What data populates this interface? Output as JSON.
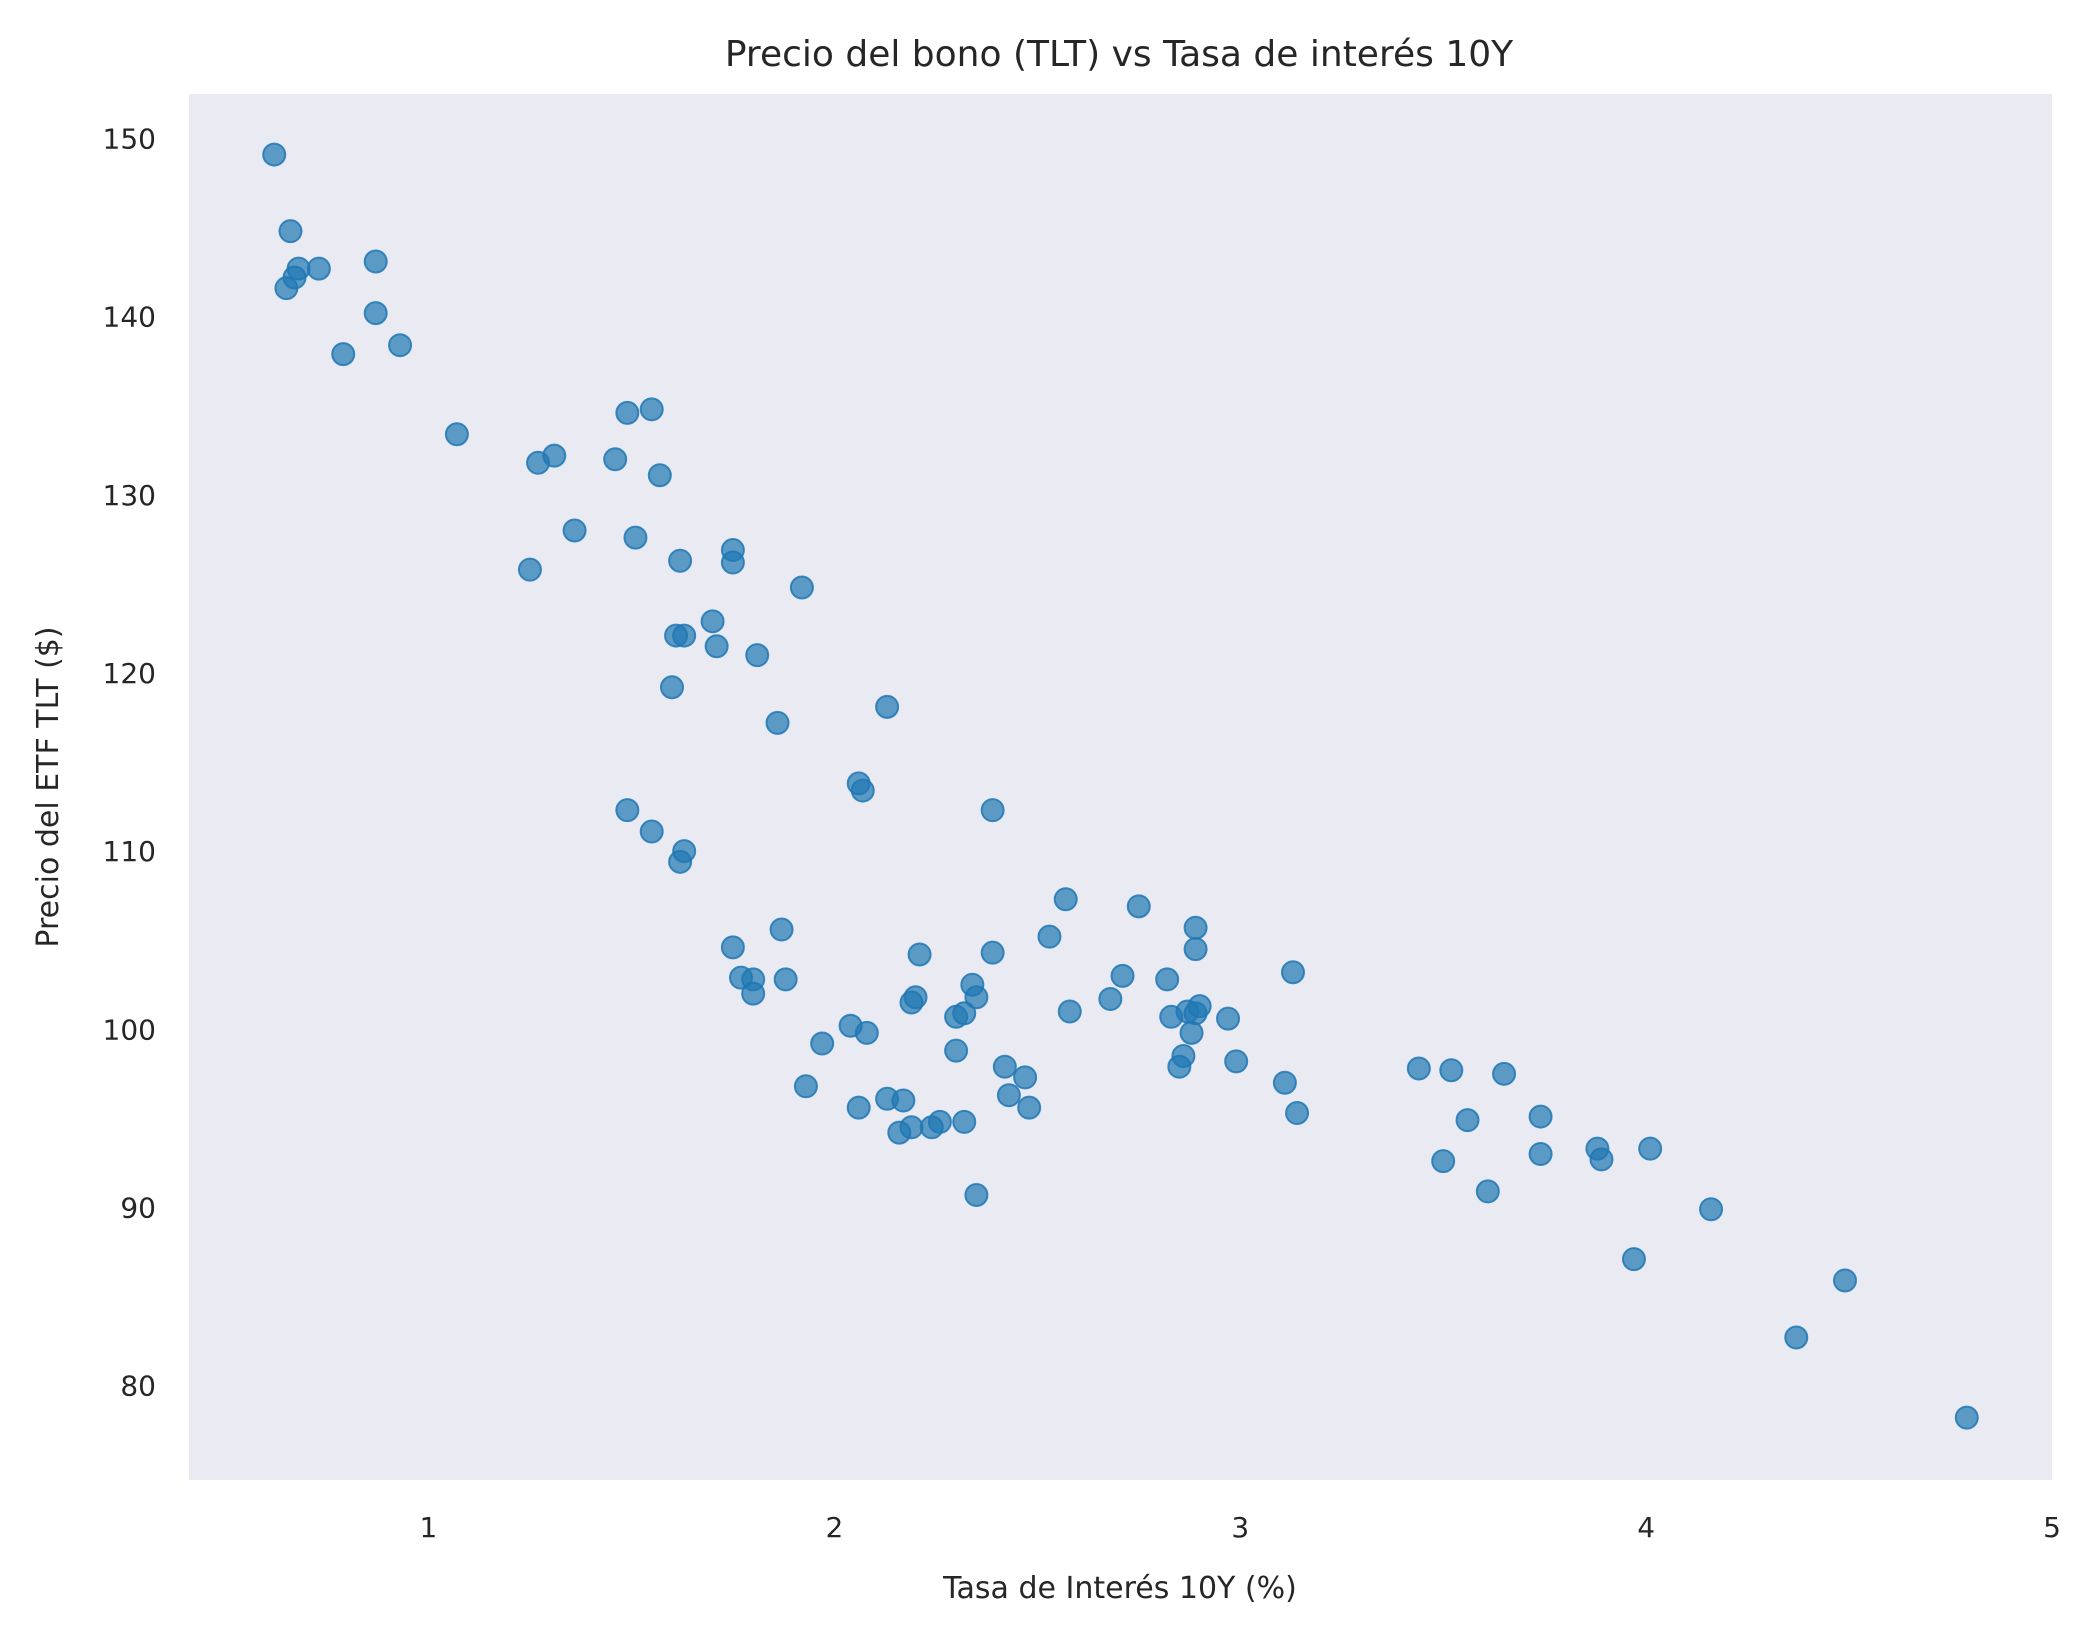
{
  "chart_data": {
    "type": "scatter",
    "title": "Precio del bono (TLT) vs Tasa de interés 10Y",
    "xlabel": "Tasa de Interés 10Y (%)",
    "ylabel": "Precio del ETF TLT ($)",
    "xlim": [
      0.41,
      5.0
    ],
    "ylim": [
      74.7,
      152.5
    ],
    "xticks": [
      1,
      2,
      3,
      4,
      5
    ],
    "yticks": [
      80,
      90,
      100,
      110,
      120,
      130,
      140,
      150
    ],
    "grid": false,
    "legend": "none",
    "colors": {
      "background": "#eaeaf2",
      "marker": "#1f77b4",
      "text": "#262626"
    },
    "points": [
      [
        0.62,
        149.1
      ],
      [
        0.66,
        144.8
      ],
      [
        0.68,
        142.7
      ],
      [
        0.67,
        142.2
      ],
      [
        0.65,
        141.6
      ],
      [
        0.73,
        142.7
      ],
      [
        0.87,
        143.1
      ],
      [
        0.87,
        140.2
      ],
      [
        0.79,
        137.9
      ],
      [
        0.93,
        138.4
      ],
      [
        1.07,
        133.4
      ],
      [
        1.27,
        131.8
      ],
      [
        1.31,
        132.2
      ],
      [
        1.46,
        132.0
      ],
      [
        1.49,
        134.6
      ],
      [
        1.55,
        134.8
      ],
      [
        1.57,
        131.1
      ],
      [
        1.25,
        125.8
      ],
      [
        1.36,
        128.0
      ],
      [
        1.51,
        127.6
      ],
      [
        1.62,
        126.3
      ],
      [
        1.75,
        126.9
      ],
      [
        1.75,
        126.2
      ],
      [
        1.92,
        124.8
      ],
      [
        1.7,
        122.9
      ],
      [
        1.61,
        122.1
      ],
      [
        1.63,
        122.1
      ],
      [
        1.71,
        121.5
      ],
      [
        1.81,
        121.0
      ],
      [
        1.6,
        119.2
      ],
      [
        1.86,
        117.2
      ],
      [
        2.13,
        118.1
      ],
      [
        2.06,
        113.8
      ],
      [
        2.07,
        113.4
      ],
      [
        2.39,
        112.3
      ],
      [
        1.49,
        112.3
      ],
      [
        1.55,
        111.1
      ],
      [
        1.63,
        110.0
      ],
      [
        1.62,
        109.4
      ],
      [
        1.87,
        105.6
      ],
      [
        1.75,
        104.6
      ],
      [
        1.77,
        102.9
      ],
      [
        1.8,
        102.8
      ],
      [
        1.8,
        102.0
      ],
      [
        1.88,
        102.8
      ],
      [
        2.21,
        104.2
      ],
      [
        2.39,
        104.3
      ],
      [
        2.53,
        105.2
      ],
      [
        2.57,
        107.3
      ],
      [
        2.75,
        106.9
      ],
      [
        2.89,
        105.7
      ],
      [
        2.89,
        104.5
      ],
      [
        3.13,
        103.2
      ],
      [
        2.71,
        103.0
      ],
      [
        2.82,
        102.8
      ],
      [
        2.68,
        101.7
      ],
      [
        2.34,
        102.5
      ],
      [
        2.35,
        101.8
      ],
      [
        2.2,
        101.8
      ],
      [
        2.19,
        101.5
      ],
      [
        2.3,
        100.7
      ],
      [
        2.32,
        100.9
      ],
      [
        2.58,
        101.0
      ],
      [
        2.83,
        100.7
      ],
      [
        2.87,
        101.0
      ],
      [
        2.89,
        100.9
      ],
      [
        2.9,
        101.3
      ],
      [
        2.97,
        100.6
      ],
      [
        2.04,
        100.2
      ],
      [
        2.08,
        99.8
      ],
      [
        1.97,
        99.2
      ],
      [
        2.3,
        98.8
      ],
      [
        2.88,
        99.8
      ],
      [
        2.86,
        98.5
      ],
      [
        2.85,
        97.9
      ],
      [
        2.99,
        98.2
      ],
      [
        2.42,
        97.9
      ],
      [
        2.47,
        97.3
      ],
      [
        2.43,
        96.3
      ],
      [
        2.48,
        95.6
      ],
      [
        3.11,
        97.0
      ],
      [
        3.14,
        95.3
      ],
      [
        1.93,
        96.8
      ],
      [
        2.06,
        95.6
      ],
      [
        2.13,
        96.1
      ],
      [
        2.17,
        96.0
      ],
      [
        2.26,
        94.8
      ],
      [
        2.32,
        94.8
      ],
      [
        2.19,
        94.5
      ],
      [
        2.24,
        94.5
      ],
      [
        2.16,
        94.2
      ],
      [
        2.35,
        90.7
      ],
      [
        3.44,
        97.8
      ],
      [
        3.52,
        97.7
      ],
      [
        3.65,
        97.5
      ],
      [
        3.56,
        94.9
      ],
      [
        3.74,
        95.1
      ],
      [
        3.74,
        93.0
      ],
      [
        3.5,
        92.6
      ],
      [
        3.61,
        90.9
      ],
      [
        3.88,
        93.3
      ],
      [
        3.89,
        92.7
      ],
      [
        4.01,
        93.3
      ],
      [
        4.16,
        89.9
      ],
      [
        3.97,
        87.1
      ],
      [
        4.49,
        85.9
      ],
      [
        4.37,
        82.7
      ],
      [
        4.79,
        78.2
      ]
    ]
  }
}
